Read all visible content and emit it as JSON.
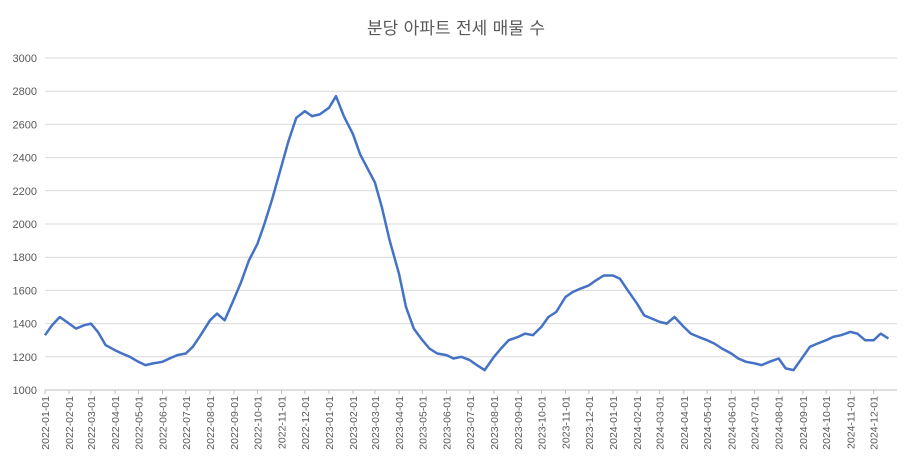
{
  "chart_data": {
    "type": "line",
    "title": "분당 아파트 전세 매물 수",
    "xlabel": "",
    "ylabel": "",
    "ylim": [
      1000,
      3000
    ],
    "yticks": [
      "1000",
      "1200",
      "1400",
      "1600",
      "1800",
      "2000",
      "2200",
      "2400",
      "2600",
      "2800",
      "3000"
    ],
    "grid": true,
    "legend": "none",
    "line_color": "#4472C4",
    "x_tick_labels": [
      "2022-01-01",
      "2022-02-01",
      "2022-03-01",
      "2022-04-01",
      "2022-05-01",
      "2022-06-01",
      "2022-07-01",
      "2022-08-01",
      "2022-09-01",
      "2022-10-01",
      "2022-11-01",
      "2022-12-01",
      "2023-01-01",
      "2023-02-01",
      "2023-03-01",
      "2023-04-01",
      "2023-05-01",
      "2023-06-01",
      "2023-07-01",
      "2023-08-01",
      "2023-09-01",
      "2023-10-01",
      "2023-11-01",
      "2023-12-01",
      "2024-01-01",
      "2024-02-01",
      "2024-03-01",
      "2024-04-01",
      "2024-05-01",
      "2024-06-01",
      "2024-07-01",
      "2024-08-01",
      "2024-09-01",
      "2024-10-01",
      "2024-11-01",
      "2024-12-01"
    ],
    "series": [
      {
        "x": [
          "2022-01-01",
          "2022-01-10",
          "2022-01-20",
          "2022-02-01",
          "2022-02-10",
          "2022-02-20",
          "2022-03-01",
          "2022-03-10",
          "2022-03-20",
          "2022-04-01",
          "2022-04-10",
          "2022-04-20",
          "2022-05-01",
          "2022-05-10",
          "2022-05-20",
          "2022-06-01",
          "2022-06-10",
          "2022-06-20",
          "2022-07-01",
          "2022-07-10",
          "2022-07-20",
          "2022-08-01",
          "2022-08-10",
          "2022-08-20",
          "2022-09-01",
          "2022-09-10",
          "2022-09-20",
          "2022-10-01",
          "2022-10-10",
          "2022-10-20",
          "2022-11-01",
          "2022-11-10",
          "2022-11-20",
          "2022-12-01",
          "2022-12-10",
          "2022-12-20",
          "2023-01-01",
          "2023-01-10",
          "2023-01-20",
          "2023-02-01",
          "2023-02-10",
          "2023-02-20",
          "2023-03-01",
          "2023-03-10",
          "2023-03-20",
          "2023-04-01",
          "2023-04-10",
          "2023-04-20",
          "2023-05-01",
          "2023-05-10",
          "2023-05-20",
          "2023-06-01",
          "2023-06-10",
          "2023-06-20",
          "2023-07-01",
          "2023-07-10",
          "2023-07-20",
          "2023-08-01",
          "2023-08-10",
          "2023-08-20",
          "2023-09-01",
          "2023-09-10",
          "2023-09-20",
          "2023-10-01",
          "2023-10-10",
          "2023-10-20",
          "2023-11-01",
          "2023-11-10",
          "2023-11-20",
          "2023-12-01",
          "2023-12-10",
          "2023-12-20",
          "2024-01-01",
          "2024-01-10",
          "2024-01-20",
          "2024-02-01",
          "2024-02-10",
          "2024-02-20",
          "2024-03-01",
          "2024-03-10",
          "2024-03-20",
          "2024-04-01",
          "2024-04-10",
          "2024-04-20",
          "2024-05-01",
          "2024-05-10",
          "2024-05-20",
          "2024-06-01",
          "2024-06-10",
          "2024-06-20",
          "2024-07-01",
          "2024-07-10",
          "2024-07-20",
          "2024-08-01",
          "2024-08-10",
          "2024-08-20",
          "2024-09-01",
          "2024-09-10",
          "2024-09-20",
          "2024-10-01",
          "2024-10-10",
          "2024-10-20",
          "2024-11-01",
          "2024-11-10",
          "2024-11-20",
          "2024-12-01",
          "2024-12-10",
          "2024-12-20"
        ],
        "values": [
          1330,
          1390,
          1440,
          1400,
          1370,
          1390,
          1400,
          1350,
          1270,
          1240,
          1220,
          1200,
          1170,
          1150,
          1160,
          1170,
          1190,
          1210,
          1220,
          1260,
          1330,
          1420,
          1460,
          1420,
          1550,
          1650,
          1780,
          1880,
          2000,
          2150,
          2350,
          2500,
          2640,
          2680,
          2650,
          2660,
          2700,
          2770,
          2650,
          2540,
          2420,
          2330,
          2250,
          2100,
          1900,
          1700,
          1500,
          1370,
          1300,
          1250,
          1220,
          1210,
          1190,
          1200,
          1180,
          1150,
          1120,
          1200,
          1250,
          1300,
          1320,
          1340,
          1330,
          1380,
          1440,
          1470,
          1560,
          1590,
          1610,
          1630,
          1660,
          1690,
          1690,
          1670,
          1600,
          1520,
          1450,
          1430,
          1410,
          1400,
          1440,
          1380,
          1340,
          1320,
          1300,
          1280,
          1250,
          1220,
          1190,
          1170,
          1160,
          1150,
          1170,
          1190,
          1130,
          1120,
          1200,
          1260,
          1280,
          1300,
          1320,
          1330,
          1350,
          1340,
          1300,
          1300,
          1340,
          1310
        ]
      }
    ]
  }
}
